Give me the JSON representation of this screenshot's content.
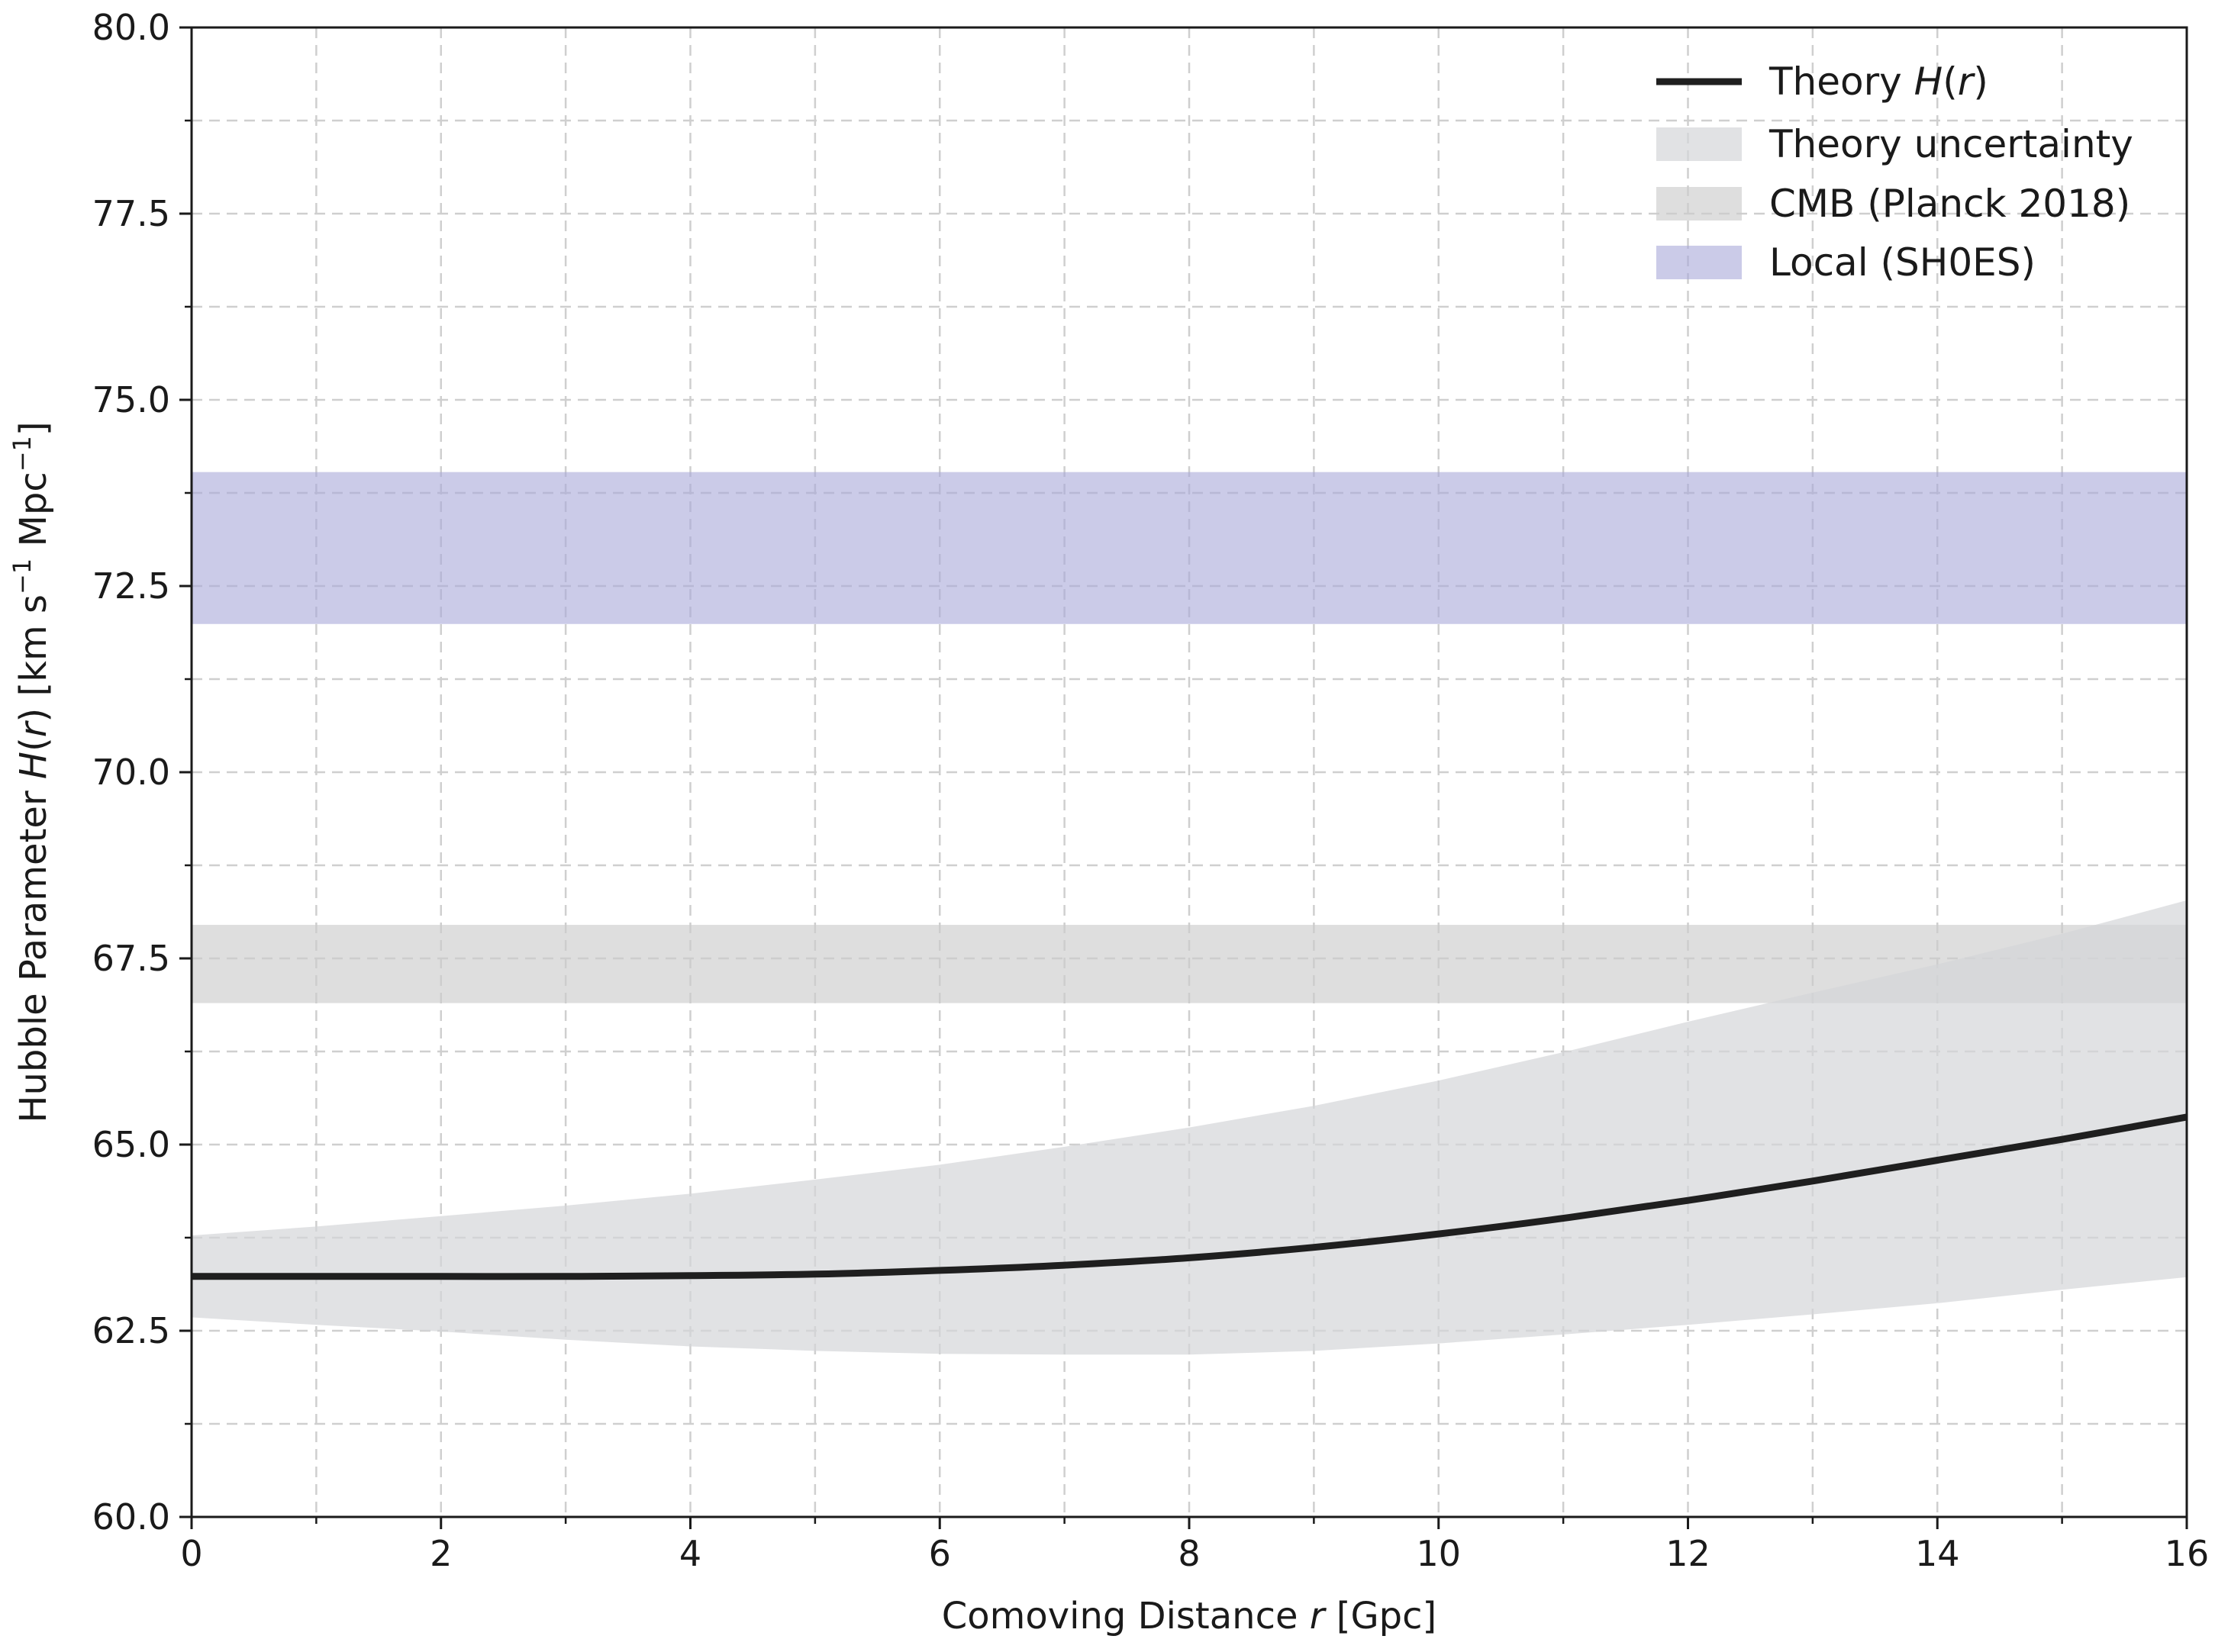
{
  "chart_data": {
    "type": "line",
    "xlabel": {
      "pre": "Comoving Distance ",
      "var": "r",
      "post": " [Gpc]"
    },
    "ylabel": {
      "pre": "Hubble Parameter ",
      "fn": "H",
      "open": "(",
      "var": "r",
      "close": ") [km s",
      "sup1": "−1",
      "mid": " Mpc",
      "sup2": "−1",
      "end": "]"
    },
    "xlim": [
      0,
      16
    ],
    "ylim": [
      60.0,
      80.0
    ],
    "x_ticks": [
      0,
      2,
      4,
      6,
      8,
      10,
      12,
      14,
      16
    ],
    "x_tick_labels": [
      "0",
      "2",
      "4",
      "6",
      "8",
      "10",
      "12",
      "14",
      "16"
    ],
    "x_minor_ticks": [
      1,
      3,
      5,
      7,
      9,
      11,
      13,
      15
    ],
    "y_ticks": [
      60.0,
      62.5,
      65.0,
      67.5,
      70.0,
      72.5,
      75.0,
      77.5,
      80.0
    ],
    "y_tick_labels": [
      "60.0",
      "62.5",
      "65.0",
      "67.5",
      "70.0",
      "72.5",
      "75.0",
      "77.5",
      "80.0"
    ],
    "y_minor_ticks": [
      61.25,
      63.75,
      66.25,
      68.75,
      71.25,
      73.75,
      76.25,
      78.75
    ],
    "grid": true,
    "legend_position": "top-right",
    "bands": [
      {
        "name": "CMB (Planck 2018)",
        "y_low": 66.9,
        "y_high": 67.95,
        "color": "#cccccc",
        "opacity": 0.65
      },
      {
        "name": "Local (SH0ES)",
        "y_low": 71.99,
        "y_high": 74.03,
        "color": "#a9a9d9",
        "opacity": 0.6
      }
    ],
    "uncertainty": {
      "name": "Theory uncertainty",
      "color": "#d4d6d8",
      "opacity": 0.7,
      "x": [
        0,
        1,
        2,
        3,
        4,
        5,
        6,
        7,
        8,
        9,
        10,
        11,
        12,
        13,
        14,
        15,
        16
      ],
      "lower": [
        62.68,
        62.58,
        62.49,
        62.38,
        62.29,
        62.23,
        62.19,
        62.18,
        62.18,
        62.23,
        62.33,
        62.45,
        62.58,
        62.72,
        62.87,
        63.05,
        63.22
      ],
      "upper": [
        63.78,
        63.9,
        64.04,
        64.18,
        64.34,
        64.53,
        64.73,
        64.97,
        65.23,
        65.52,
        65.86,
        66.24,
        66.65,
        67.04,
        67.42,
        67.83,
        68.28
      ]
    },
    "series": [
      {
        "name": "Theory",
        "color": "#1f1f1f",
        "x": [
          0,
          1,
          2,
          3,
          4,
          5,
          6,
          7,
          8,
          9,
          10,
          11,
          12,
          13,
          14,
          15,
          16
        ],
        "values": [
          63.23,
          63.23,
          63.23,
          63.23,
          63.24,
          63.26,
          63.31,
          63.38,
          63.48,
          63.62,
          63.8,
          64.01,
          64.25,
          64.51,
          64.79,
          65.07,
          65.37
        ]
      }
    ],
    "legend": [
      {
        "kind": "line",
        "pre": "Theory ",
        "fn": "H",
        "open": "(",
        "var": "r",
        "close": ")",
        "color": "#1f1f1f"
      },
      {
        "kind": "patch",
        "label": "Theory uncertainty",
        "color": "#d4d6d8",
        "opacity": 0.7
      },
      {
        "kind": "patch",
        "label": "CMB (Planck 2018)",
        "color": "#cccccc",
        "opacity": 0.65
      },
      {
        "kind": "patch",
        "label": "Local (SH0ES)",
        "color": "#a9a9d9",
        "opacity": 0.6
      }
    ]
  }
}
